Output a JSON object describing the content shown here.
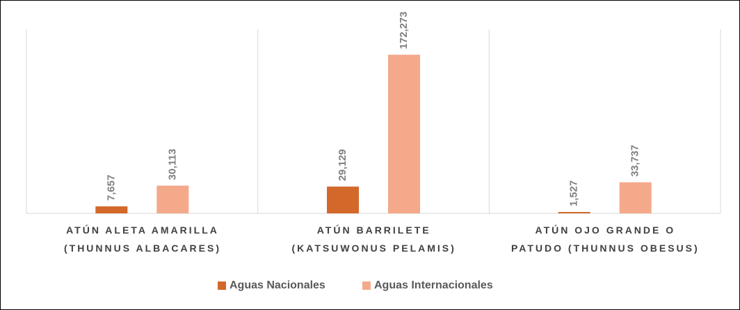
{
  "chart_data": {
    "type": "bar",
    "categories": [
      "ATÚN ALETA AMARILLA\n(THUNNUS ALBACARES)",
      "ATÚN BARRILETE\n(KATSUWONUS PELAMIS)",
      "ATÚN OJO GRANDE O\nPATUDO (THUNNUS OBESUS)"
    ],
    "series": [
      {
        "name": "Aguas Nacionales",
        "color": "#d2692b",
        "values": [
          7657,
          29129,
          1527
        ],
        "value_labels": [
          "7,657",
          "29,129",
          "1,527"
        ]
      },
      {
        "name": "Aguas Internacionales",
        "color": "#f4a98a",
        "values": [
          30113,
          172273,
          33737
        ],
        "value_labels": [
          "30,113",
          "172,273",
          "33,737"
        ]
      }
    ],
    "ylim": [
      0,
      200000
    ]
  }
}
